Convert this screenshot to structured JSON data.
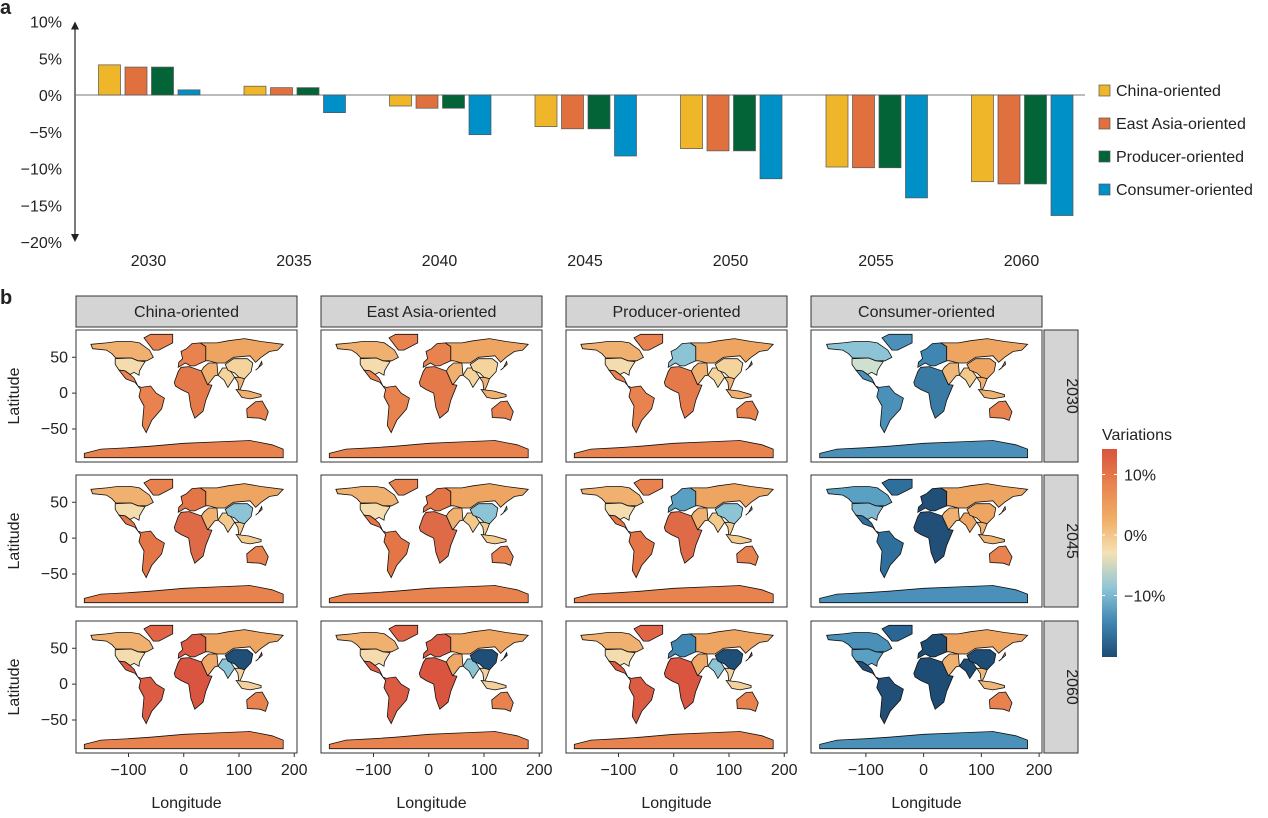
{
  "chart_data": [
    {
      "panel_label": "a",
      "type": "bar",
      "categories": [
        "2030",
        "2035",
        "2040",
        "2045",
        "2050",
        "2055",
        "2060"
      ],
      "ylim": [
        -20,
        10
      ],
      "yticks": [
        "10%",
        "5%",
        "0%",
        "−5%",
        "−10%",
        "−15%",
        "−20%"
      ],
      "ytick_values": [
        10,
        5,
        0,
        -5,
        -10,
        -15,
        -20
      ],
      "grid": false,
      "legend_placement": "right",
      "series": [
        {
          "name": "China-oriented",
          "color": "#f0b629",
          "values": [
            4.1,
            1.2,
            -1.5,
            -4.3,
            -7.3,
            -9.8,
            -11.8
          ]
        },
        {
          "name": "East Asia-oriented",
          "color": "#e0713e",
          "values": [
            3.8,
            1.0,
            -1.8,
            -4.6,
            -7.6,
            -9.9,
            -12.1
          ]
        },
        {
          "name": "Producer-oriented",
          "color": "#036437",
          "values": [
            3.8,
            1.0,
            -1.8,
            -4.6,
            -7.6,
            -9.9,
            -12.1
          ]
        },
        {
          "name": "Consumer-oriented",
          "color": "#0090c8",
          "values": [
            0.7,
            -2.4,
            -5.4,
            -8.3,
            -11.4,
            -14.0,
            -16.4
          ]
        }
      ]
    },
    {
      "panel_label": "b",
      "type": "heatmap",
      "description_type": "choropleth-facets",
      "columns": [
        "China-oriented",
        "East Asia-oriented",
        "Producer-oriented",
        "Consumer-oriented"
      ],
      "rows": [
        "2030",
        "2045",
        "2060"
      ],
      "xlabel": "Longitude",
      "ylabel": "Latitude",
      "xticks": [
        "−100",
        "0",
        "100",
        "200"
      ],
      "xtick_values": [
        -100,
        0,
        100,
        200
      ],
      "yticks": [
        "50",
        "0",
        "−50"
      ],
      "ytick_values": [
        50,
        0,
        -50
      ],
      "colorbar": {
        "title": "Variations",
        "ticks": [
          "10%",
          "0%",
          "−10%"
        ],
        "tick_values": [
          10,
          0,
          -10
        ],
        "stops": [
          "#1d4c74",
          "#3f86b2",
          "#8fc6d6",
          "#f4e1b4",
          "#f0ad64",
          "#e8834f",
          "#d9533f"
        ]
      },
      "region_colors": [
        [
          {
            "canada": "#f0b070",
            "usa": "#f5dcae",
            "greenland": "#e8834f",
            "latam": "#e8834f",
            "europe": "#e8834f",
            "russia": "#efa562",
            "africa": "#e47a4a",
            "mideast": "#f0b070",
            "india": "#f4d49c",
            "china": "#f4d49c",
            "seasia": "#f0b070",
            "japan": "#e8834f",
            "australia": "#e8834f",
            "antarctica": "#e8834f"
          },
          {
            "canada": "#f0b070",
            "usa": "#f5dcae",
            "greenland": "#e8834f",
            "latam": "#e47546",
            "europe": "#e47546",
            "russia": "#efa562",
            "africa": "#df6a48",
            "mideast": "#f0b070",
            "india": "#f3c98c",
            "china": "#8cc4d6",
            "seasia": "#f3c98c",
            "japan": "#e47546",
            "australia": "#e8834f",
            "antarctica": "#e8834f"
          },
          {
            "canada": "#f0b070",
            "usa": "#f5dcae",
            "greenland": "#e06547",
            "latam": "#dc5c43",
            "europe": "#dc5c43",
            "russia": "#efa562",
            "africa": "#d9553f",
            "mideast": "#f0a868",
            "india": "#8cc4d6",
            "china": "#1f4f77",
            "seasia": "#f3d09c",
            "japan": "#d9553f",
            "australia": "#e8834f",
            "antarctica": "#e8834f"
          }
        ],
        [
          {
            "canada": "#f0b070",
            "usa": "#f5dcae",
            "greenland": "#e8834f",
            "latam": "#e8834f",
            "europe": "#e8834f",
            "russia": "#efa562",
            "africa": "#e47a4a",
            "mideast": "#f0b070",
            "india": "#f4d49c",
            "china": "#f4d49c",
            "seasia": "#f0b070",
            "japan": "#e8834f",
            "australia": "#e8834f",
            "antarctica": "#e8834f"
          },
          {
            "canada": "#f0b070",
            "usa": "#f5dcae",
            "greenland": "#e8834f",
            "latam": "#e47546",
            "europe": "#e47546",
            "russia": "#efa562",
            "africa": "#df6a48",
            "mideast": "#f0b070",
            "india": "#f3c98c",
            "china": "#8cc4d6",
            "seasia": "#f3c98c",
            "japan": "#8cc4d6",
            "australia": "#e8834f",
            "antarctica": "#e8834f"
          },
          {
            "canada": "#f0b070",
            "usa": "#f5dcae",
            "greenland": "#e06547",
            "latam": "#dc5c43",
            "europe": "#dc5c43",
            "russia": "#efa562",
            "africa": "#d9553f",
            "mideast": "#f0a868",
            "india": "#8cc4d6",
            "china": "#1f4f77",
            "seasia": "#f3d09c",
            "japan": "#1f4f77",
            "australia": "#e8834f",
            "antarctica": "#e8834f"
          }
        ],
        [
          {
            "canada": "#f0b070",
            "usa": "#f5dcae",
            "greenland": "#e8834f",
            "latam": "#e8834f",
            "europe": "#8cc4d6",
            "russia": "#efa562",
            "africa": "#e47a4a",
            "mideast": "#f0b070",
            "india": "#f4d49c",
            "china": "#f4d49c",
            "seasia": "#f0b070",
            "japan": "#e8834f",
            "australia": "#e8834f",
            "antarctica": "#e8834f"
          },
          {
            "canada": "#f0b070",
            "usa": "#f5dcae",
            "greenland": "#e8834f",
            "latam": "#e47546",
            "europe": "#5aa0c2",
            "russia": "#efa562",
            "africa": "#df6a48",
            "mideast": "#f0b070",
            "india": "#f3c98c",
            "china": "#8cc4d6",
            "seasia": "#f3c98c",
            "japan": "#e47546",
            "australia": "#e8834f",
            "antarctica": "#e8834f"
          },
          {
            "canada": "#f0b070",
            "usa": "#f5dcae",
            "greenland": "#e06547",
            "latam": "#dc5c43",
            "europe": "#3f86b2",
            "russia": "#efa562",
            "africa": "#d9553f",
            "mideast": "#f0a868",
            "india": "#8cc4d6",
            "china": "#1f4f77",
            "seasia": "#f3d09c",
            "japan": "#d9553f",
            "australia": "#e8834f",
            "antarctica": "#e8834f"
          }
        ],
        [
          {
            "canada": "#8cc4d6",
            "usa": "#cfe0d0",
            "greenland": "#4a90b8",
            "latam": "#4a90b8",
            "europe": "#3f86b2",
            "russia": "#efa562",
            "africa": "#3a7ba6",
            "mideast": "#f0b878",
            "india": "#f3c98c",
            "china": "#efa562",
            "seasia": "#f0b070",
            "japan": "#e8834f",
            "australia": "#e8834f",
            "antarctica": "#4a90b8"
          },
          {
            "canada": "#5aa0c2",
            "usa": "#7fb8d0",
            "greenland": "#2f6f9c",
            "latam": "#2f6f9c",
            "europe": "#224f78",
            "russia": "#efa562",
            "africa": "#224f78",
            "mideast": "#f0b070",
            "india": "#efa562",
            "china": "#efa562",
            "seasia": "#f0b070",
            "japan": "#e8834f",
            "australia": "#e8834f",
            "antarctica": "#4a90b8"
          },
          {
            "canada": "#4a90b8",
            "usa": "#5aa0c2",
            "greenland": "#2a6594",
            "latam": "#224f78",
            "europe": "#1d4c74",
            "russia": "#efa562",
            "africa": "#1d4c74",
            "mideast": "#f0b070",
            "india": "#1d4c74",
            "china": "#1d4c74",
            "seasia": "#f0b878",
            "japan": "#e8834f",
            "australia": "#e8834f",
            "antarctica": "#4a90b8"
          }
        ]
      ]
    }
  ]
}
